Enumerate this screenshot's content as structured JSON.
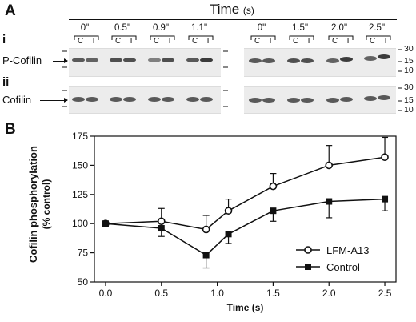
{
  "panel_a": {
    "letter": "A",
    "time_title": "Time",
    "time_unit": "(s)",
    "row_i_roman": "i",
    "row_ii_roman": "ii",
    "row_i_label": "P-Cofilin",
    "row_ii_label": "Cofilin",
    "left_times": [
      "0\"",
      "0.5\"",
      "0.9\"",
      "1.1\""
    ],
    "right_times": [
      "0\"",
      "1.5\"",
      "2.0\"",
      "2.5\""
    ],
    "lane_c": "C",
    "lane_t": "T",
    "mw_markers": [
      "30",
      "15",
      "10"
    ]
  },
  "panel_b": {
    "letter": "B"
  },
  "chart_data": {
    "type": "line",
    "ylabel": "Cofilin phosphorylation",
    "ylabel_sub": "(% control)",
    "xlabel": "Time (s)",
    "xlim": [
      -0.1,
      2.6
    ],
    "ylim": [
      50,
      175
    ],
    "xticks": [
      "0.0",
      "0.5",
      "1.0",
      "1.5",
      "2.0",
      "2.5"
    ],
    "yticks": [
      "50",
      "75",
      "100",
      "125",
      "150",
      "175"
    ],
    "legend_position": "lower-right",
    "x": [
      0.0,
      0.5,
      0.9,
      1.1,
      1.5,
      2.0,
      2.5
    ],
    "series": [
      {
        "name": "LFM-A13",
        "marker": "open-circle",
        "values": [
          100,
          102,
          95,
          111,
          132,
          150,
          157
        ],
        "errors": [
          0,
          11,
          12,
          10,
          11,
          17,
          17
        ]
      },
      {
        "name": "Control",
        "marker": "filled-square",
        "values": [
          100,
          96,
          73,
          91,
          111,
          119,
          121
        ],
        "errors": [
          0,
          7,
          11,
          8,
          9,
          14,
          10
        ]
      }
    ]
  }
}
